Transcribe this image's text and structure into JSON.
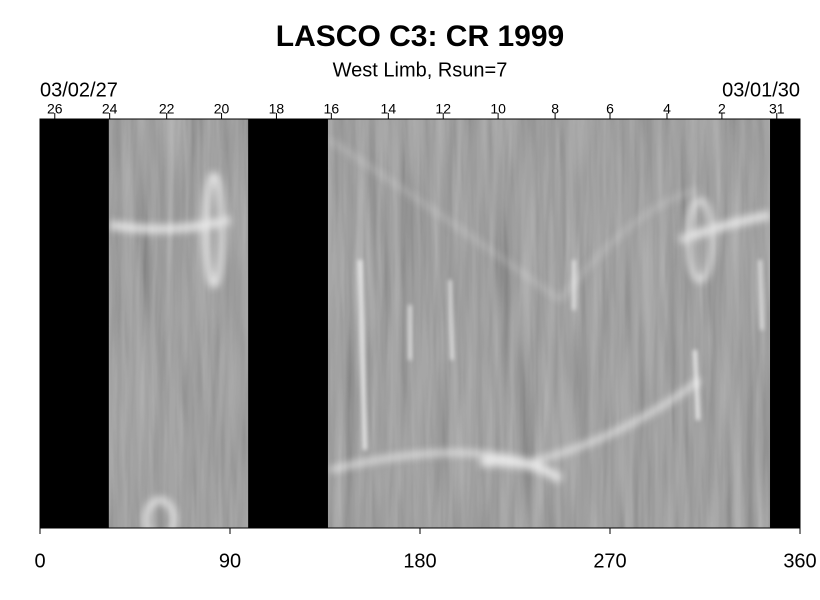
{
  "chart_data": {
    "type": "synoptic-map",
    "title": "LASCO C3: CR 1999",
    "subtitle": "West Limb, Rsun=7",
    "start_date": "03/02/27",
    "end_date": "03/01/30",
    "xlim": [
      0,
      360
    ],
    "xticks": [
      0,
      90,
      180,
      270,
      360
    ],
    "top_ticks": [
      {
        "value": 7,
        "label": "26"
      },
      {
        "value": 33,
        "label": "24"
      },
      {
        "value": 60,
        "label": "22"
      },
      {
        "value": 86,
        "label": "20"
      },
      {
        "value": 112,
        "label": "18"
      },
      {
        "value": 138,
        "label": "16"
      },
      {
        "value": 165,
        "label": "14"
      },
      {
        "value": 191,
        "label": "12"
      },
      {
        "value": 217,
        "label": "10"
      },
      {
        "value": 244,
        "label": "8"
      },
      {
        "value": 270,
        "label": "6"
      },
      {
        "value": 297,
        "label": "4"
      },
      {
        "value": 323,
        "label": "2"
      },
      {
        "value": 349,
        "label": "31"
      }
    ],
    "gaps": [
      [
        0,
        32.6
      ],
      [
        98.6,
        136.4
      ],
      [
        345.8,
        360
      ]
    ]
  }
}
